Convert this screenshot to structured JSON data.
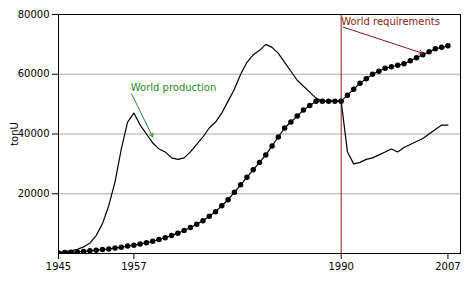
{
  "chart_data": {
    "type": "line",
    "ylabel": "tonU",
    "x": [
      1945,
      1946,
      1947,
      1948,
      1949,
      1950,
      1951,
      1952,
      1953,
      1954,
      1955,
      1956,
      1957,
      1958,
      1959,
      1960,
      1961,
      1962,
      1963,
      1964,
      1965,
      1966,
      1967,
      1968,
      1969,
      1970,
      1971,
      1972,
      1973,
      1974,
      1975,
      1976,
      1977,
      1978,
      1979,
      1980,
      1981,
      1982,
      1983,
      1984,
      1985,
      1986,
      1987,
      1988,
      1989,
      1990,
      1991,
      1992,
      1993,
      1994,
      1995,
      1996,
      1997,
      1998,
      1999,
      2000,
      2001,
      2002,
      2003,
      2004,
      2005,
      2006,
      2007
    ],
    "series": [
      {
        "color": "#000000",
        "marker": "none",
        "line_style": "solid",
        "values": [
          300,
          600,
          900,
          1400,
          2200,
          3500,
          6000,
          10000,
          16000,
          24000,
          35000,
          44000,
          47000,
          43000,
          40000,
          37000,
          35000,
          34000,
          32000,
          31500,
          32000,
          34000,
          36500,
          39000,
          42000,
          44000,
          47000,
          51000,
          55000,
          60000,
          64000,
          66500,
          68000,
          70000,
          69000,
          67000,
          64000,
          61000,
          58000,
          56000,
          54000,
          52000,
          51000,
          51000,
          51000,
          51000,
          34000,
          30000,
          30500,
          31500,
          32000,
          33000,
          34000,
          35000,
          34000,
          35500,
          36500,
          37500,
          38500,
          40000,
          41500,
          43000,
          43000
        ]
      },
      {
        "color": "#000000",
        "marker": "circle",
        "line_style": "solid",
        "values": [
          200,
          300,
          400,
          500,
          700,
          900,
          1100,
          1300,
          1500,
          1800,
          2100,
          2500,
          2800,
          3200,
          3600,
          4100,
          4700,
          5300,
          6000,
          6800,
          7700,
          8700,
          9800,
          11000,
          12500,
          14000,
          16000,
          18000,
          20500,
          23000,
          25500,
          28000,
          30500,
          33000,
          36000,
          39000,
          42000,
          44000,
          46000,
          48000,
          49500,
          51000,
          51000,
          51000,
          51000,
          51000,
          53000,
          55000,
          57000,
          58500,
          60000,
          61000,
          62000,
          62500,
          63000,
          63500,
          64500,
          65500,
          66500,
          67500,
          68500,
          69000,
          69500
        ]
      }
    ],
    "xlim": [
      1945,
      2009
    ],
    "xticks": [
      1945,
      1957,
      1990,
      2007
    ],
    "ylim": [
      0,
      80000
    ],
    "yticks": [
      20000,
      40000,
      60000,
      80000
    ],
    "grid": "y",
    "vlines": [
      {
        "x": 1990,
        "color": "#8B1A1A"
      }
    ],
    "annotations": [
      {
        "text": "World production",
        "xy": [
          1960,
          39000
        ],
        "xytext": [
          1956.5,
          54000
        ],
        "color": "#228B22"
      },
      {
        "text": "World requirements",
        "xy": [
          2003,
          67000
        ],
        "xytext": [
          1990,
          76000
        ],
        "color": "#8B1A1A"
      }
    ]
  }
}
